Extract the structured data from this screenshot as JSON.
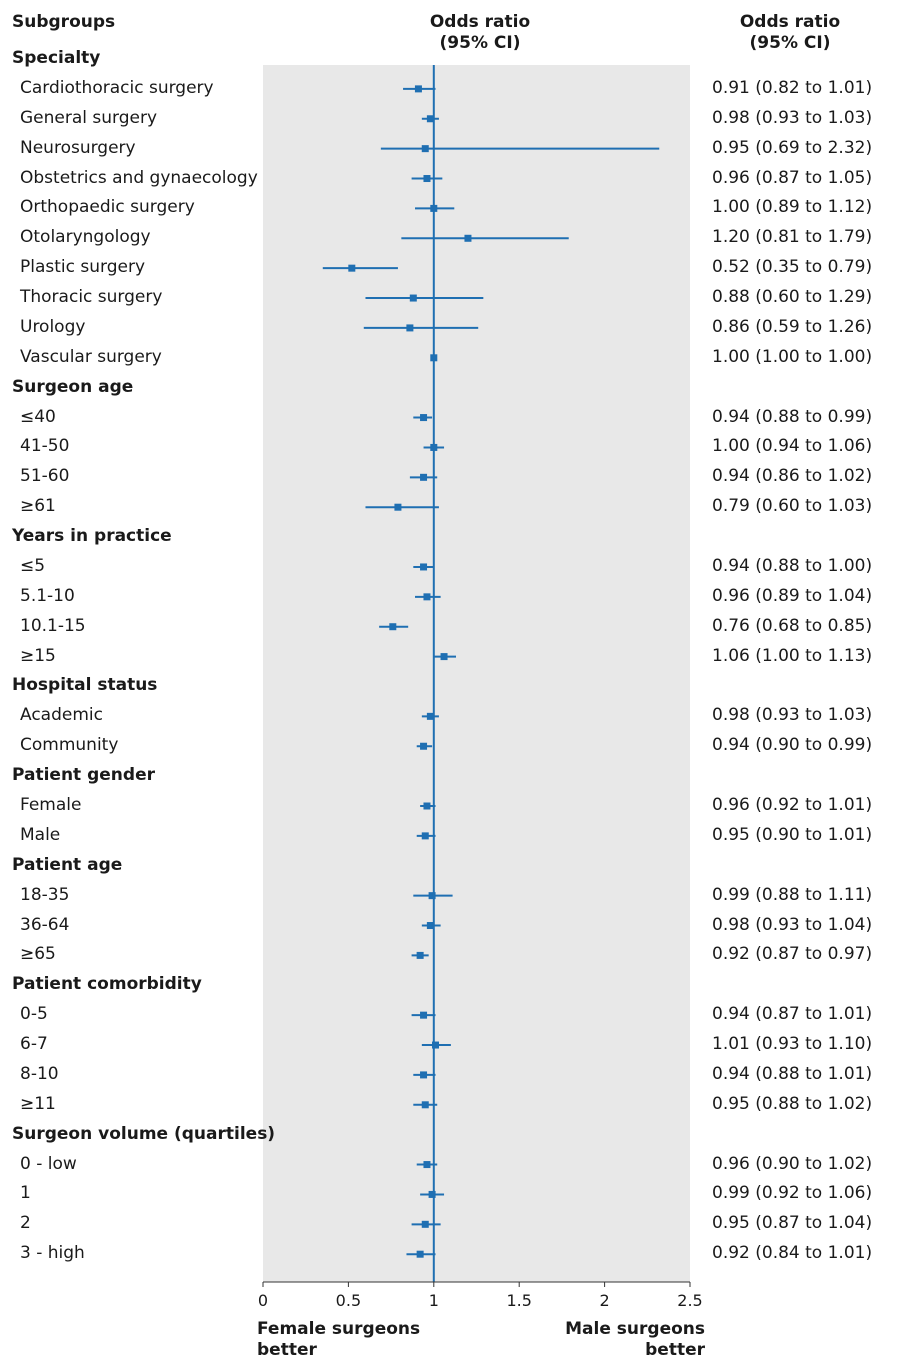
{
  "header": {
    "subgroups": "Subgroups",
    "or_line1": "Odds ratio",
    "or_line2": "(95% CI)",
    "right_line1": "Odds ratio",
    "right_line2": "(95% CI)"
  },
  "footer": {
    "left_line1": "Female surgeons",
    "left_line2": "better",
    "right_line1": "Male surgeons",
    "right_line2": "better"
  },
  "colors": {
    "panel": "#e8e8e8",
    "marker": "#1f6fb2",
    "ref_line": "#1f6fb2",
    "axis": "#333333"
  },
  "chart_data": {
    "type": "forest",
    "xlim": [
      0,
      2.5
    ],
    "xticks": [
      0,
      0.5,
      1,
      1.5,
      2,
      2.5
    ],
    "xtick_labels": [
      "0",
      "0.5",
      "1",
      "1.5",
      "2",
      "2.5"
    ],
    "reference_value": 1,
    "rows": [
      {
        "kind": "group",
        "label": "Specialty"
      },
      {
        "kind": "item",
        "label": "Cardiothoracic surgery",
        "or": 0.91,
        "lo": 0.82,
        "hi": 1.01,
        "text": "0.91 (0.82 to 1.01)"
      },
      {
        "kind": "item",
        "label": "General surgery",
        "or": 0.98,
        "lo": 0.93,
        "hi": 1.03,
        "text": "0.98 (0.93 to 1.03)"
      },
      {
        "kind": "item",
        "label": "Neurosurgery",
        "or": 0.95,
        "lo": 0.69,
        "hi": 2.32,
        "text": "0.95 (0.69 to 2.32)"
      },
      {
        "kind": "item",
        "label": "Obstetrics and gynaecology",
        "or": 0.96,
        "lo": 0.87,
        "hi": 1.05,
        "text": "0.96 (0.87 to 1.05)"
      },
      {
        "kind": "item",
        "label": "Orthopaedic surgery",
        "or": 1.0,
        "lo": 0.89,
        "hi": 1.12,
        "text": "1.00 (0.89 to 1.12)"
      },
      {
        "kind": "item",
        "label": "Otolaryngology",
        "or": 1.2,
        "lo": 0.81,
        "hi": 1.79,
        "text": "1.20 (0.81 to 1.79)"
      },
      {
        "kind": "item",
        "label": "Plastic surgery",
        "or": 0.52,
        "lo": 0.35,
        "hi": 0.79,
        "text": "0.52 (0.35 to 0.79)"
      },
      {
        "kind": "item",
        "label": "Thoracic surgery",
        "or": 0.88,
        "lo": 0.6,
        "hi": 1.29,
        "text": "0.88 (0.60 to 1.29)"
      },
      {
        "kind": "item",
        "label": "Urology",
        "or": 0.86,
        "lo": 0.59,
        "hi": 1.26,
        "text": "0.86 (0.59 to 1.26)"
      },
      {
        "kind": "item",
        "label": "Vascular surgery",
        "or": 1.0,
        "lo": 1.0,
        "hi": 1.0,
        "text": "1.00 (1.00 to 1.00)"
      },
      {
        "kind": "group",
        "label": "Surgeon age"
      },
      {
        "kind": "item",
        "label": "≤40",
        "or": 0.94,
        "lo": 0.88,
        "hi": 0.99,
        "text": "0.94 (0.88 to 0.99)"
      },
      {
        "kind": "item",
        "label": "41-50",
        "or": 1.0,
        "lo": 0.94,
        "hi": 1.06,
        "text": "1.00 (0.94 to 1.06)"
      },
      {
        "kind": "item",
        "label": "51-60",
        "or": 0.94,
        "lo": 0.86,
        "hi": 1.02,
        "text": "0.94 (0.86 to 1.02)"
      },
      {
        "kind": "item",
        "label": "≥61",
        "or": 0.79,
        "lo": 0.6,
        "hi": 1.03,
        "text": "0.79 (0.60 to 1.03)"
      },
      {
        "kind": "group",
        "label": "Years in practice"
      },
      {
        "kind": "item",
        "label": "≤5",
        "or": 0.94,
        "lo": 0.88,
        "hi": 1.0,
        "text": "0.94 (0.88 to 1.00)"
      },
      {
        "kind": "item",
        "label": "5.1-10",
        "or": 0.96,
        "lo": 0.89,
        "hi": 1.04,
        "text": "0.96 (0.89 to 1.04)"
      },
      {
        "kind": "item",
        "label": "10.1-15",
        "or": 0.76,
        "lo": 0.68,
        "hi": 0.85,
        "text": "0.76 (0.68 to 0.85)"
      },
      {
        "kind": "item",
        "label": "≥15",
        "or": 1.06,
        "lo": 1.0,
        "hi": 1.13,
        "text": "1.06 (1.00 to 1.13)"
      },
      {
        "kind": "group",
        "label": "Hospital status"
      },
      {
        "kind": "item",
        "label": "Academic",
        "or": 0.98,
        "lo": 0.93,
        "hi": 1.03,
        "text": "0.98 (0.93 to 1.03)"
      },
      {
        "kind": "item",
        "label": "Community",
        "or": 0.94,
        "lo": 0.9,
        "hi": 0.99,
        "text": "0.94 (0.90 to 0.99)"
      },
      {
        "kind": "group",
        "label": "Patient gender"
      },
      {
        "kind": "item",
        "label": "Female",
        "or": 0.96,
        "lo": 0.92,
        "hi": 1.01,
        "text": "0.96 (0.92 to 1.01)"
      },
      {
        "kind": "item",
        "label": "Male",
        "or": 0.95,
        "lo": 0.9,
        "hi": 1.01,
        "text": "0.95 (0.90 to 1.01)"
      },
      {
        "kind": "group",
        "label": "Patient age"
      },
      {
        "kind": "item",
        "label": "18-35",
        "or": 0.99,
        "lo": 0.88,
        "hi": 1.11,
        "text": "0.99 (0.88 to 1.11)"
      },
      {
        "kind": "item",
        "label": "36-64",
        "or": 0.98,
        "lo": 0.93,
        "hi": 1.04,
        "text": "0.98 (0.93 to 1.04)"
      },
      {
        "kind": "item",
        "label": "≥65",
        "or": 0.92,
        "lo": 0.87,
        "hi": 0.97,
        "text": "0.92 (0.87 to 0.97)"
      },
      {
        "kind": "group",
        "label": "Patient comorbidity"
      },
      {
        "kind": "item",
        "label": "0-5",
        "or": 0.94,
        "lo": 0.87,
        "hi": 1.01,
        "text": "0.94 (0.87 to 1.01)"
      },
      {
        "kind": "item",
        "label": "6-7",
        "or": 1.01,
        "lo": 0.93,
        "hi": 1.1,
        "text": "1.01 (0.93 to 1.10)"
      },
      {
        "kind": "item",
        "label": "8-10",
        "or": 0.94,
        "lo": 0.88,
        "hi": 1.01,
        "text": "0.94 (0.88 to 1.01)"
      },
      {
        "kind": "item",
        "label": "≥11",
        "or": 0.95,
        "lo": 0.88,
        "hi": 1.02,
        "text": "0.95 (0.88 to 1.02)"
      },
      {
        "kind": "group",
        "label": "Surgeon volume (quartiles)"
      },
      {
        "kind": "item",
        "label": "0 - low",
        "or": 0.96,
        "lo": 0.9,
        "hi": 1.02,
        "text": "0.96 (0.90 to 1.02)"
      },
      {
        "kind": "item",
        "label": "1",
        "or": 0.99,
        "lo": 0.92,
        "hi": 1.06,
        "text": "0.99 (0.92 to 1.06)"
      },
      {
        "kind": "item",
        "label": "2",
        "or": 0.95,
        "lo": 0.87,
        "hi": 1.04,
        "text": "0.95 (0.87 to 1.04)"
      },
      {
        "kind": "item",
        "label": "3 - high",
        "or": 0.92,
        "lo": 0.84,
        "hi": 1.01,
        "text": "0.92 (0.84 to 1.01)"
      }
    ]
  }
}
